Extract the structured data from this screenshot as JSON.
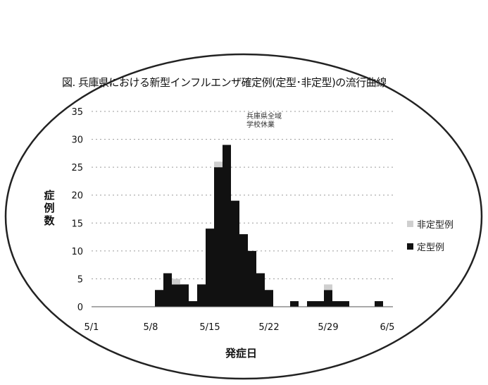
{
  "chart_data": {
    "type": "bar",
    "title": "図. 兵庫県における新型インフルエンザ確定例(定型･非定型)の流行曲線",
    "xlabel": "発症日",
    "ylabel": "症例数",
    "ylim": [
      0,
      35
    ],
    "yticks": [
      0,
      5,
      10,
      15,
      20,
      25,
      30,
      35
    ],
    "xticks": [
      "5/1",
      "5/8",
      "5/15",
      "5/22",
      "5/29",
      "6/5"
    ],
    "annotation": "兵庫県全域\n学校休業",
    "stacked": true,
    "grid": true,
    "legend_position": "right",
    "categories": [
      "5/1",
      "5/2",
      "5/3",
      "5/4",
      "5/5",
      "5/6",
      "5/7",
      "5/8",
      "5/9",
      "5/10",
      "5/11",
      "5/12",
      "5/13",
      "5/14",
      "5/15",
      "5/16",
      "5/17",
      "5/18",
      "5/19",
      "5/20",
      "5/21",
      "5/22",
      "5/23",
      "5/24",
      "5/25",
      "5/26",
      "5/27",
      "5/28",
      "5/29",
      "5/30",
      "5/31",
      "6/1",
      "6/2",
      "6/3",
      "6/4",
      "6/5"
    ],
    "series": [
      {
        "name": "非定型例",
        "color": "#cfcfcf",
        "values": [
          0,
          0,
          0,
          0,
          0,
          0,
          0,
          0,
          0,
          0,
          1,
          0,
          0,
          0,
          0,
          1,
          0,
          0,
          0,
          0,
          0,
          0,
          0,
          0,
          0,
          0,
          0,
          0,
          1,
          0,
          0,
          0,
          0,
          0,
          0,
          0
        ]
      },
      {
        "name": "定型例",
        "color": "#111111",
        "values": [
          0,
          0,
          0,
          0,
          0,
          0,
          0,
          0,
          3,
          6,
          4,
          4,
          1,
          4,
          14,
          25,
          29,
          19,
          13,
          10,
          6,
          3,
          0,
          0,
          1,
          0,
          1,
          1,
          3,
          1,
          1,
          0,
          0,
          0,
          1,
          0
        ]
      }
    ]
  }
}
